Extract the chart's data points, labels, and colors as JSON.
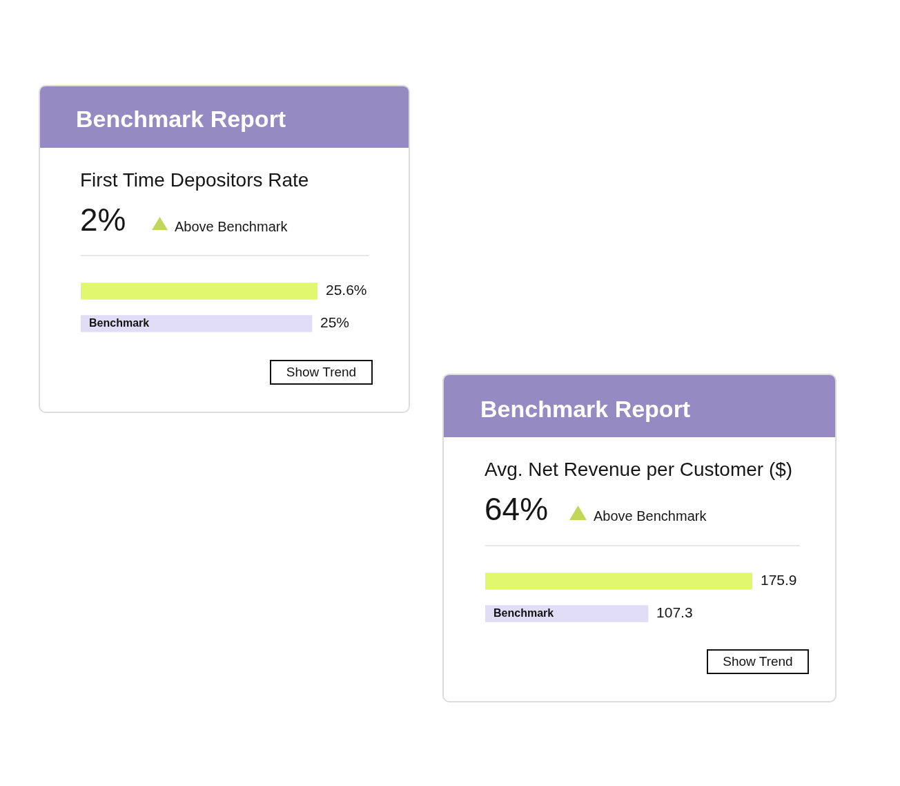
{
  "chart_data": [
    {
      "type": "bar",
      "orientation": "horizontal",
      "title": "Benchmark Report",
      "subtitle": "First Time Depositors Rate",
      "categories": [
        null,
        "Benchmark"
      ],
      "values": [
        25.6,
        25
      ],
      "colors": [
        "#e1f76e",
        "#e1ddf7"
      ],
      "value_labels": [
        "25.6%",
        "25%"
      ],
      "tick_labels": "y",
      "annotations": [
        "2%",
        "Above Benchmark",
        "Show Trend"
      ]
    },
    {
      "type": "bar",
      "orientation": "horizontal",
      "title": "Benchmark Report",
      "subtitle": "Avg. Net Revenue per Customer ($)",
      "categories": [
        null,
        "Benchmark"
      ],
      "values": [
        175.9,
        107.3
      ],
      "colors": [
        "#e1f76e",
        "#e1ddf7"
      ],
      "data_labels": true,
      "tick_labels": "y",
      "annotations": [
        "64%",
        "Above Benchmark",
        "Show Trend"
      ]
    }
  ]
}
